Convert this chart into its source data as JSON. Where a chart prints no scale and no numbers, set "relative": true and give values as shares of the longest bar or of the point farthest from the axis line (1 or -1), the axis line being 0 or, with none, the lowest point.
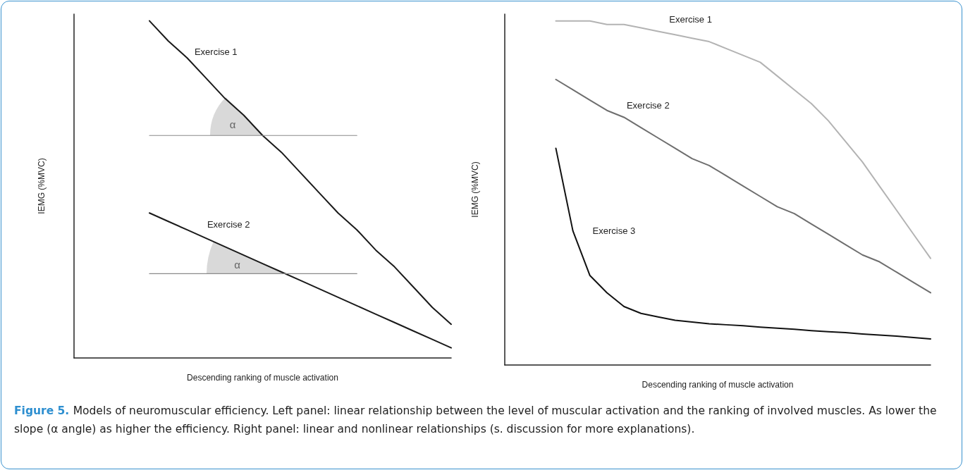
{
  "chart_data": [
    {
      "type": "line",
      "relative": true,
      "xlabel": "Descending ranking of muscle activation",
      "ylabel": "IEMG (%MVC)",
      "categories": [
        null,
        null,
        null,
        null,
        null,
        null,
        null,
        null,
        null,
        null,
        null,
        null,
        null,
        null,
        null,
        null,
        null,
        null,
        null,
        null,
        null
      ],
      "series": [
        {
          "name": "Exercise 1",
          "color": "#1a1a1a",
          "values": [
            null,
            null,
            null,
            null,
            1,
            0.94,
            0.89,
            0.83,
            0.77,
            0.72,
            0.66,
            0.61,
            0.55,
            0.49,
            0.43,
            0.38,
            0.32,
            0.27,
            0.21,
            0.15,
            0.1
          ]
        },
        {
          "name": "Exercise 2",
          "color": "#1a1a1a",
          "values": [
            null,
            null,
            null,
            null,
            0.43,
            0.405,
            0.38,
            0.355,
            0.33,
            0.305,
            0.28,
            0.255,
            0.23,
            0.205,
            0.18,
            0.155,
            0.13,
            0.105,
            0.08,
            0.055,
            0.03
          ]
        },
        {
          "color": "#8a8a8a",
          "values": [
            null,
            null,
            null,
            null,
            0.66,
            0.66,
            0.66,
            0.66,
            0.66,
            0.66,
            0.66,
            0.66,
            0.66,
            0.66,
            0.66,
            0.66,
            null,
            null,
            null,
            null,
            null
          ]
        },
        {
          "color": "#8a8a8a",
          "values": [
            null,
            null,
            null,
            null,
            0.25,
            0.25,
            0.25,
            0.25,
            0.25,
            0.25,
            0.25,
            0.25,
            0.25,
            0.25,
            0.25,
            0.25,
            null,
            null,
            null,
            null,
            null
          ]
        }
      ],
      "annotations": [
        "α",
        "α"
      ]
    },
    {
      "type": "line",
      "relative": true,
      "xlabel": "Descending ranking of muscle activation",
      "ylabel": "IEMG (%MVC)",
      "categories": [
        null,
        null,
        null,
        null,
        null,
        null,
        null,
        null,
        null,
        null,
        null,
        null,
        null,
        null,
        null,
        null,
        null,
        null,
        null,
        null,
        null,
        null,
        null,
        null,
        null,
        null
      ],
      "series": [
        {
          "name": "Exercise 1",
          "color": "#b3b3b3",
          "values": [
            null,
            null,
            null,
            1,
            1,
            1,
            0.99,
            0.99,
            0.98,
            0.97,
            0.96,
            0.95,
            0.94,
            0.92,
            0.9,
            0.88,
            0.84,
            0.8,
            0.76,
            0.71,
            0.65,
            0.59,
            0.52,
            0.45,
            0.38,
            0.31
          ]
        },
        {
          "name": "Exercise 2",
          "color": "#6e6e6e",
          "values": [
            null,
            null,
            null,
            0.83,
            0.8,
            0.77,
            0.74,
            0.72,
            0.69,
            0.66,
            0.63,
            0.6,
            0.58,
            0.55,
            0.52,
            0.49,
            0.46,
            0.44,
            0.41,
            0.38,
            0.35,
            0.32,
            0.3,
            0.27,
            0.24,
            0.21
          ]
        },
        {
          "name": "Exercise 3",
          "color": "#111111",
          "values": [
            null,
            null,
            null,
            0.63,
            0.39,
            0.26,
            0.21,
            0.17,
            0.15,
            0.14,
            0.13,
            0.125,
            0.12,
            0.117,
            0.114,
            0.11,
            0.107,
            0.104,
            0.1,
            0.097,
            0.094,
            0.09,
            0.087,
            0.084,
            0.08,
            0.076
          ]
        }
      ],
      "annotations": [
        "Figure 5.",
        "Models of neuromuscular efficiency. Left panel: linear relationship between the level of muscular activation and the ranking of involved muscles. As lower the slope (α angle) as higher the efficiency. Right panel: linear and nonlinear relationships (s. discussion for more explanations)."
      ]
    }
  ]
}
